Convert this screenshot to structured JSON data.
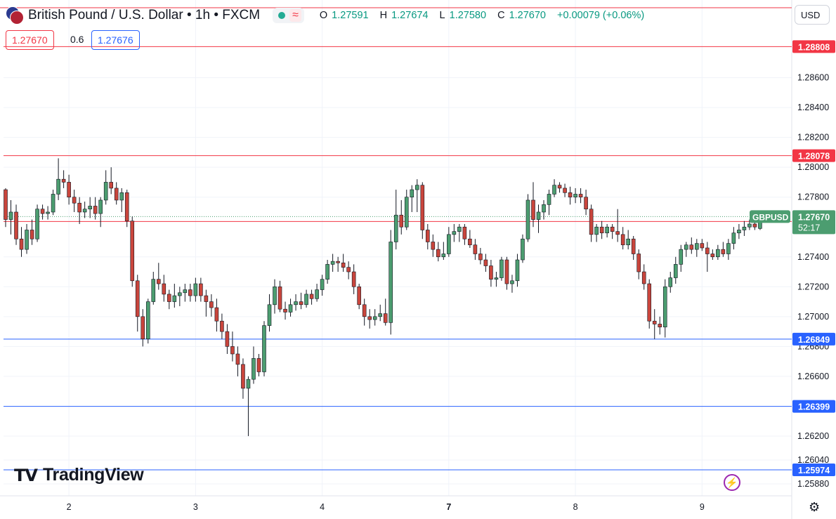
{
  "header": {
    "title": "British Pound / U.S. Dollar • 1h • FXCM",
    "status_icon": "live-dot-icon",
    "wave_icon": "≈",
    "ohlc": {
      "o": "1.27591",
      "h": "1.27674",
      "l": "1.27580",
      "c": "1.27670",
      "chg": "+0.00079 (+0.06%)"
    },
    "ohlc_keys": {
      "o": "O",
      "h": "H",
      "l": "L",
      "c": "C"
    }
  },
  "quote": {
    "bid": "1.27670",
    "spread": "0.6",
    "ask": "1.27676"
  },
  "currency_button": "USD",
  "branding": {
    "logo_mark": "TV",
    "logo_text": "TradingView"
  },
  "icons": {
    "bolt": "⚡",
    "settings": "⚙"
  },
  "colors": {
    "up": "#089981",
    "down": "#f23645",
    "support": "#2962ff",
    "resistance": "#f23645",
    "up_body": "#4c9d70",
    "down_body": "#c9453c"
  },
  "chart_data": {
    "type": "candlestick",
    "symbol_label": "GBPUSD",
    "last_price": "1.27670",
    "countdown": "52:17",
    "ylim": [
      1.258,
      1.2912
    ],
    "y_ticks": [
      "1.25880",
      "1.26040",
      "1.26200",
      "1.26600",
      "1.26800",
      "1.27000",
      "1.27200",
      "1.27400",
      "1.27800",
      "1.28000",
      "1.28200",
      "1.28400",
      "1.28600"
    ],
    "x_ticks": [
      {
        "label": "2",
        "bar": 12
      },
      {
        "label": "3",
        "bar": 36
      },
      {
        "label": "4",
        "bar": 60
      },
      {
        "label": "7",
        "bar": 84
      },
      {
        "label": "8",
        "bar": 108
      },
      {
        "label": "9",
        "bar": 132
      }
    ],
    "levels": [
      {
        "value": 1.28808,
        "label": "1.28808",
        "kind": "resistance"
      },
      {
        "value": 1.28078,
        "label": "1.28078",
        "kind": "resistance"
      },
      {
        "value": 1.27637,
        "label": "1.27637",
        "kind": "resistance"
      },
      {
        "value": 1.26849,
        "label": "1.26849",
        "kind": "support"
      },
      {
        "value": 1.26399,
        "label": "1.26399",
        "kind": "support"
      },
      {
        "value": 1.25974,
        "label": "1.25974",
        "kind": "support"
      }
    ],
    "candles": [
      [
        1.2785,
        1.2786,
        1.276,
        1.2765
      ],
      [
        1.2765,
        1.2778,
        1.2755,
        1.277
      ],
      [
        1.277,
        1.2775,
        1.2748,
        1.2752
      ],
      [
        1.2752,
        1.276,
        1.274,
        1.2745
      ],
      [
        1.2745,
        1.2762,
        1.2742,
        1.2758
      ],
      [
        1.2758,
        1.2765,
        1.2748,
        1.2752
      ],
      [
        1.2752,
        1.2775,
        1.275,
        1.2772
      ],
      [
        1.2772,
        1.2775,
        1.2765,
        1.2769
      ],
      [
        1.2769,
        1.2774,
        1.2765,
        1.277
      ],
      [
        1.277,
        1.2785,
        1.2768,
        1.2782
      ],
      [
        1.2782,
        1.2806,
        1.2778,
        1.2792
      ],
      [
        1.2792,
        1.2798,
        1.2786,
        1.279
      ],
      [
        1.279,
        1.2795,
        1.2775,
        1.278
      ],
      [
        1.278,
        1.2785,
        1.277,
        1.2776
      ],
      [
        1.2776,
        1.278,
        1.2762,
        1.277
      ],
      [
        1.277,
        1.2777,
        1.2766,
        1.2772
      ],
      [
        1.2772,
        1.278,
        1.2766,
        1.2774
      ],
      [
        1.2774,
        1.278,
        1.2765,
        1.2769
      ],
      [
        1.2769,
        1.278,
        1.276,
        1.2778
      ],
      [
        1.2778,
        1.2798,
        1.2775,
        1.279
      ],
      [
        1.279,
        1.28,
        1.2782,
        1.2786
      ],
      [
        1.2786,
        1.279,
        1.2775,
        1.2778
      ],
      [
        1.2778,
        1.2786,
        1.277,
        1.2783
      ],
      [
        1.2783,
        1.2785,
        1.276,
        1.2764
      ],
      [
        1.2764,
        1.2767,
        1.272,
        1.2724
      ],
      [
        1.2724,
        1.2728,
        1.269,
        1.27
      ],
      [
        1.27,
        1.2705,
        1.268,
        1.2685
      ],
      [
        1.2685,
        1.2712,
        1.2682,
        1.271
      ],
      [
        1.271,
        1.273,
        1.2708,
        1.2725
      ],
      [
        1.2725,
        1.2736,
        1.2718,
        1.2722
      ],
      [
        1.2722,
        1.2728,
        1.271,
        1.2715
      ],
      [
        1.2715,
        1.2718,
        1.2705,
        1.271
      ],
      [
        1.271,
        1.2722,
        1.2706,
        1.2714
      ],
      [
        1.2714,
        1.272,
        1.2707,
        1.2716
      ],
      [
        1.2716,
        1.2722,
        1.271,
        1.2718
      ],
      [
        1.2718,
        1.2722,
        1.271,
        1.2714
      ],
      [
        1.2714,
        1.2726,
        1.271,
        1.2722
      ],
      [
        1.2722,
        1.2726,
        1.271,
        1.2714
      ],
      [
        1.2714,
        1.2718,
        1.27,
        1.271
      ],
      [
        1.271,
        1.2715,
        1.27,
        1.2706
      ],
      [
        1.2706,
        1.2712,
        1.269,
        1.2697
      ],
      [
        1.2697,
        1.2702,
        1.2685,
        1.269
      ],
      [
        1.269,
        1.2695,
        1.2675,
        1.268
      ],
      [
        1.268,
        1.269,
        1.267,
        1.2675
      ],
      [
        1.2675,
        1.268,
        1.266,
        1.2668
      ],
      [
        1.2668,
        1.2672,
        1.2645,
        1.2652
      ],
      [
        1.2652,
        1.266,
        1.262,
        1.2658
      ],
      [
        1.2658,
        1.268,
        1.2655,
        1.2672
      ],
      [
        1.2672,
        1.2675,
        1.266,
        1.2663
      ],
      [
        1.2663,
        1.2697,
        1.266,
        1.2694
      ],
      [
        1.2694,
        1.2715,
        1.269,
        1.2708
      ],
      [
        1.2708,
        1.2725,
        1.2702,
        1.272
      ],
      [
        1.272,
        1.2724,
        1.2703,
        1.2705
      ],
      [
        1.2705,
        1.271,
        1.2698,
        1.2703
      ],
      [
        1.2703,
        1.2712,
        1.27,
        1.2708
      ],
      [
        1.2708,
        1.2715,
        1.2704,
        1.271
      ],
      [
        1.271,
        1.2716,
        1.2705,
        1.2708
      ],
      [
        1.2708,
        1.2718,
        1.2706,
        1.2715
      ],
      [
        1.2715,
        1.2718,
        1.2708,
        1.2712
      ],
      [
        1.2712,
        1.2722,
        1.271,
        1.2718
      ],
      [
        1.2718,
        1.2728,
        1.2714,
        1.2725
      ],
      [
        1.2725,
        1.2738,
        1.2722,
        1.2735
      ],
      [
        1.2735,
        1.2742,
        1.273,
        1.2737
      ],
      [
        1.2737,
        1.274,
        1.273,
        1.2736
      ],
      [
        1.2736,
        1.2742,
        1.273,
        1.2733
      ],
      [
        1.2733,
        1.2737,
        1.2725,
        1.273
      ],
      [
        1.273,
        1.2735,
        1.2715,
        1.272
      ],
      [
        1.272,
        1.2722,
        1.2705,
        1.2708
      ],
      [
        1.2708,
        1.2712,
        1.2694,
        1.27
      ],
      [
        1.27,
        1.2705,
        1.2692,
        1.2698
      ],
      [
        1.2698,
        1.2705,
        1.2694,
        1.27
      ],
      [
        1.27,
        1.2708,
        1.2697,
        1.2702
      ],
      [
        1.2702,
        1.2712,
        1.2694,
        1.2696
      ],
      [
        1.2696,
        1.2758,
        1.2688,
        1.275
      ],
      [
        1.275,
        1.2785,
        1.2745,
        1.2768
      ],
      [
        1.2768,
        1.2778,
        1.2755,
        1.276
      ],
      [
        1.276,
        1.2785,
        1.2758,
        1.278
      ],
      [
        1.278,
        1.2788,
        1.277,
        1.2785
      ],
      [
        1.2785,
        1.2792,
        1.277,
        1.2788
      ],
      [
        1.2788,
        1.279,
        1.2752,
        1.2758
      ],
      [
        1.2758,
        1.2762,
        1.2745,
        1.275
      ],
      [
        1.275,
        1.2755,
        1.274,
        1.2745
      ],
      [
        1.2745,
        1.275,
        1.2737,
        1.274
      ],
      [
        1.274,
        1.275,
        1.2738,
        1.2742
      ],
      [
        1.2742,
        1.276,
        1.274,
        1.2755
      ],
      [
        1.2755,
        1.2762,
        1.275,
        1.2757
      ],
      [
        1.2757,
        1.2762,
        1.275,
        1.276
      ],
      [
        1.276,
        1.2762,
        1.2748,
        1.2752
      ],
      [
        1.2752,
        1.2758,
        1.2746,
        1.2748
      ],
      [
        1.2748,
        1.2752,
        1.2738,
        1.2742
      ],
      [
        1.2742,
        1.2746,
        1.2735,
        1.2738
      ],
      [
        1.2738,
        1.2742,
        1.273,
        1.2734
      ],
      [
        1.2734,
        1.2738,
        1.272,
        1.2725
      ],
      [
        1.2725,
        1.273,
        1.272,
        1.2726
      ],
      [
        1.2726,
        1.274,
        1.2724,
        1.2738
      ],
      [
        1.2738,
        1.274,
        1.2718,
        1.2722
      ],
      [
        1.2722,
        1.2728,
        1.2716,
        1.2724
      ],
      [
        1.2724,
        1.2742,
        1.272,
        1.2738
      ],
      [
        1.2738,
        1.2755,
        1.2736,
        1.2752
      ],
      [
        1.2752,
        1.2782,
        1.275,
        1.2778
      ],
      [
        1.2778,
        1.279,
        1.276,
        1.2765
      ],
      [
        1.2765,
        1.2775,
        1.2756,
        1.277
      ],
      [
        1.277,
        1.2778,
        1.2765,
        1.2775
      ],
      [
        1.2775,
        1.2785,
        1.2768,
        1.2782
      ],
      [
        1.2782,
        1.2792,
        1.278,
        1.2788
      ],
      [
        1.2788,
        1.279,
        1.2783,
        1.2786
      ],
      [
        1.2786,
        1.2789,
        1.278,
        1.2783
      ],
      [
        1.2783,
        1.2787,
        1.2775,
        1.278
      ],
      [
        1.278,
        1.2786,
        1.2776,
        1.2782
      ],
      [
        1.2782,
        1.2786,
        1.2776,
        1.278
      ],
      [
        1.278,
        1.2785,
        1.2768,
        1.2772
      ],
      [
        1.2772,
        1.2775,
        1.275,
        1.2755
      ],
      [
        1.2755,
        1.2762,
        1.275,
        1.276
      ],
      [
        1.276,
        1.2764,
        1.2752,
        1.2756
      ],
      [
        1.2756,
        1.2762,
        1.2753,
        1.276
      ],
      [
        1.276,
        1.2762,
        1.2752,
        1.2757
      ],
      [
        1.2757,
        1.2772,
        1.275,
        1.2755
      ],
      [
        1.2755,
        1.276,
        1.2745,
        1.2748
      ],
      [
        1.2748,
        1.2758,
        1.2745,
        1.2752
      ],
      [
        1.2752,
        1.2754,
        1.2738,
        1.2742
      ],
      [
        1.2742,
        1.2745,
        1.2725,
        1.273
      ],
      [
        1.273,
        1.2735,
        1.2718,
        1.2722
      ],
      [
        1.2722,
        1.2725,
        1.2692,
        1.2697
      ],
      [
        1.2697,
        1.2705,
        1.2685,
        1.2695
      ],
      [
        1.2695,
        1.27,
        1.2688,
        1.2693
      ],
      [
        1.2693,
        1.2725,
        1.2686,
        1.272
      ],
      [
        1.272,
        1.273,
        1.2716,
        1.2726
      ],
      [
        1.2726,
        1.274,
        1.2722,
        1.2735
      ],
      [
        1.2735,
        1.2748,
        1.273,
        1.2745
      ],
      [
        1.2745,
        1.275,
        1.274,
        1.2748
      ],
      [
        1.2748,
        1.2753,
        1.2742,
        1.2745
      ],
      [
        1.2745,
        1.2752,
        1.274,
        1.2749
      ],
      [
        1.2749,
        1.2752,
        1.2744,
        1.2746
      ],
      [
        1.2746,
        1.275,
        1.273,
        1.2742
      ],
      [
        1.2742,
        1.2745,
        1.2738,
        1.274
      ],
      [
        1.274,
        1.2748,
        1.2738,
        1.2745
      ],
      [
        1.2745,
        1.275,
        1.274,
        1.2742
      ],
      [
        1.2742,
        1.2752,
        1.2738,
        1.2749
      ],
      [
        1.2749,
        1.276,
        1.2745,
        1.2756
      ],
      [
        1.2756,
        1.2762,
        1.2752,
        1.2758
      ],
      [
        1.2758,
        1.2764,
        1.2754,
        1.276
      ],
      [
        1.276,
        1.2765,
        1.2758,
        1.2762
      ],
      [
        1.2762,
        1.2767,
        1.2758,
        1.276
      ],
      [
        1.2759,
        1.27674,
        1.2758,
        1.2767
      ]
    ]
  }
}
